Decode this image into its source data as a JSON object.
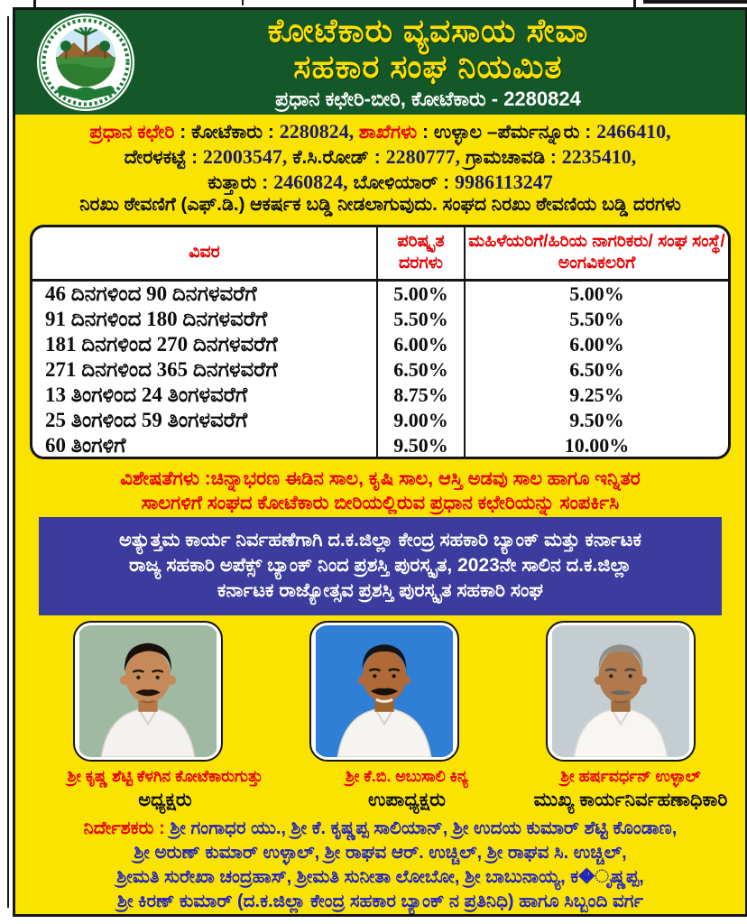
{
  "colors": {
    "banner_green": "#14582a",
    "poster_yellow": "#fbe300",
    "accent_red": "#e60000",
    "number_navy": "#1b1b70",
    "award_blue": "#3c3c9e",
    "director_blue": "#2323c0"
  },
  "banner": {
    "logo_name": "cooperative-society-emblem",
    "title_line1": "ಕೋಟೆಕಾರು ವ್ಯವಸಾಯ ಸೇವಾ",
    "title_line2": "ಸಹಕಾರ ಸಂಘ ನಿಯಮಿತ",
    "subtitle": "ಪ್ರಧಾನ ಕಛೇರಿ-ಬೀರಿ, ಕೋಟೆಕಾರು - 2280824"
  },
  "contact": {
    "line1": [
      {
        "text": "ಪ್ರಧಾನ ಕಛೇರಿ",
        "cls": "red"
      },
      {
        "text": " : ಕೋಟೆಕಾರು : ",
        "cls": "blk"
      },
      {
        "text": "2280824, ",
        "cls": "num"
      },
      {
        "text": "ಶಾಖೆಗಳು",
        "cls": "red"
      },
      {
        "text": " : ಉಳ್ಳಾಲ –ಪೆರ್ಮನ್ನೂರು : ",
        "cls": "blk"
      },
      {
        "text": "2466410,",
        "cls": "num"
      }
    ],
    "line2": [
      {
        "text": "ದೇರಳಕಟ್ಟೆ : ",
        "cls": "blk"
      },
      {
        "text": "22003547,",
        "cls": "num"
      },
      {
        "text": "  ಕೆ.ಸಿ.ರೋಡ್ : ",
        "cls": "blk"
      },
      {
        "text": "2280777,",
        "cls": "num"
      },
      {
        "text": " ಗ್ರಾಮಚಾವಡಿ : ",
        "cls": "blk"
      },
      {
        "text": "2235410,",
        "cls": "num"
      }
    ],
    "line3": [
      {
        "text": "ಕುತ್ತಾರು : ",
        "cls": "blk"
      },
      {
        "text": "2460824,",
        "cls": "num"
      },
      {
        "text": " ಬೋಳಿಯಾರ್ : ",
        "cls": "blk"
      },
      {
        "text": "9986113247",
        "cls": "num"
      }
    ]
  },
  "fd_notice": "ನಿರಖು ಠೇವಣಿಗೆ (ಎಫ್.ಡಿ.) ಆಕರ್ಷಕ ಬಡ್ಡಿ ನೀಡಲಾಗುವುದು. ಸಂಘದ ನಿರಖು ಠೇವಣಿಯ ಬಡ್ಡಿ ದರಗಳು",
  "rates_table": {
    "headers": {
      "col1": "ವಿವರ",
      "col2": "ಪರಿಷ್ಕೃತ ದರಗಳು",
      "col3": "ಮಹಿಳೆಯರಿಗೆ/ಹಿರಿಯ ನಾಗರಿಕರು/ ಸಂಘ ಸಂಸ್ಥೆ/ ಅಂಗವಿಕಲರಿಗೆ"
    },
    "rows": [
      {
        "label": "46 ದಿನಗಳಿಂದ 90 ದಿನಗಳವರೆಗೆ",
        "rate": "5.00%",
        "special": "5.00%"
      },
      {
        "label": "91 ದಿನಗಳಿಂದ 180 ದಿನಗಳವರೆಗೆ",
        "rate": "5.50%",
        "special": "5.50%"
      },
      {
        "label": "181 ದಿನಗಳಿಂದ 270 ದಿನಗಳವರೆಗೆ",
        "rate": "6.00%",
        "special": "6.00%"
      },
      {
        "label": "271 ದಿನಗಳಿಂದ 365 ದಿನಗಳವರೆಗೆ",
        "rate": "6.50%",
        "special": "6.50%"
      },
      {
        "label": "13 ತಿಂಗಳಿಂದ 24 ತಿಂಗಳವರೆಗೆ",
        "rate": "8.75%",
        "special": "9.25%"
      },
      {
        "label": "25 ತಿಂಗಳಿಂದ 59 ತಿಂಗಳವರೆಗೆ",
        "rate": "9.00%",
        "special": "9.50%"
      },
      {
        "label": "60 ತಿಂಗಳಿಗೆ",
        "rate": "9.50%",
        "special": "10.00%"
      }
    ]
  },
  "features": {
    "line1": [
      {
        "text": "ವಿಶೇಷತೆಗಳು :",
        "cls": "red"
      },
      {
        "text": "ಚಿನ್ನಾಭರಣ ಈಡಿನ ಸಾಲ, ಕೃಷಿ ಸಾಲ, ಆಸ್ತಿ ಅಡವು ಸಾಲ ಹಾಗೂ ಇನ್ನಿತರ",
        "cls": "red"
      }
    ],
    "line2": "ಸಾಲಗಳಿಗೆ ಸಂಘದ ಕೋಟೆಕಾರು ಬೀರಿಯಲ್ಲಿರುವ ಪ್ರಧಾನ ಕಛೇರಿಯನ್ನು ಸಂಪರ್ಕಿಸಿ"
  },
  "award": {
    "line1": "ಅತ್ಯುತ್ತಮ ಕಾರ್ಯ ನಿರ್ವಹಣೆಗಾಗಿ ದ.ಕ.ಜಿಲ್ಲಾ ಕೇಂದ್ರ ಸಹಕಾರಿ ಬ್ಯಾಂಕ್ ಮತ್ತು ಕರ್ನಾಟಕ",
    "line2": "ರಾಜ್ಯ ಸಹಕಾರಿ ಅಪೆಕ್ಸ್ ಬ್ಯಾಂಕ್ ನಿಂದ ಪ್ರಶಸ್ತಿ ಪುರಸ್ಕೃತ, 2023ನೇ ಸಾಲಿನ ದ.ಕ.ಜಿಲ್ಲಾ",
    "line3": "ಕರ್ನಾಟಕ ರಾಜ್ಯೋತ್ಸವ ಪ್ರಶಸ್ತಿ ಪುರಸ್ಕೃತ ಸಹಕಾರಿ ಸಂಘ"
  },
  "people": [
    {
      "name": "ಶ್ರೀ ಕೃಷ್ಣ ಶೆಟ್ಟಿ ಕೆಳಗಿನ ಕೋಟೆಕಾರುಗುತ್ತು",
      "title": "ಅಧ್ಯಕ್ಷರು",
      "photo": "portrait-man-dark-hair-green-background"
    },
    {
      "name": "ಶ್ರೀ ಕೆ.ಬಿ. ಅಬುಸಾಲಿ ಕಿನ್ಯ",
      "title": "ಉಪಾಧ್ಯಕ್ಷರು",
      "photo": "portrait-man-dark-hair-blue-background"
    },
    {
      "name": "ಶ್ರೀ ಹರ್ಷವರ್ಧನ್ ಉಳ್ಳಾಲ್",
      "title": "ಮುಖ್ಯ ಕಾರ್ಯನಿರ್ವಹಣಾಧಿಕಾರಿ",
      "photo": "portrait-man-grey-hair-grey-background"
    }
  ],
  "directors": {
    "line1": [
      {
        "text": "ನಿರ್ದೇಶಕರು : ",
        "cls": "red"
      },
      {
        "text": "ಶ್ರೀ ಗಂಗಾಧರ ಯು., ಶ್ರೀ ಕೆ. ಕೃಷ್ಣಪ್ಪ ಸಾಲಿಯಾನ್, ಶ್ರೀ ಉದಯ ಕುಮಾರ್ ಶೆಟ್ಟಿ ಕೊಂಡಾಣ,",
        "cls": "blue"
      }
    ],
    "line2": "ಶ್ರೀ ಅರುಣ್ ಕುಮಾರ್ ಉಳ್ಳಾಲ್, ಶ್ರೀ ರಾಘವ ಆರ್. ಉಚ್ಚಿಲ್, ಶ್ರೀ ರಾಘವ ಸಿ. ಉಚ್ಚಿಲ್,",
    "line3": "ಶ್ರೀಮತಿ ಸುರೇಖಾ ಚಂದ್ರಹಾಸ್, ಶ್ರೀಮತಿ ಸುನೀತಾ ಲೋಬೋ, ಶ್ರೀ ಬಾಬುನಾಯ್ಯ, ಕ�ೃಷ್ಣಪ್ಪ,",
    "line4": "ಶ್ರೀ ಕಿರಣ್ ಕುಮಾರ್ (ದ.ಕ.ಜಿಲ್ಲಾ ಕೇಂದ್ರ ಸಹಕಾರ ಬ್ಯಾಂಕ್ ನ ಪ್ರತಿನಿಧಿ) ಹಾಗೂ ಸಿಬ್ಬಂದಿ ವರ್ಗ"
  }
}
